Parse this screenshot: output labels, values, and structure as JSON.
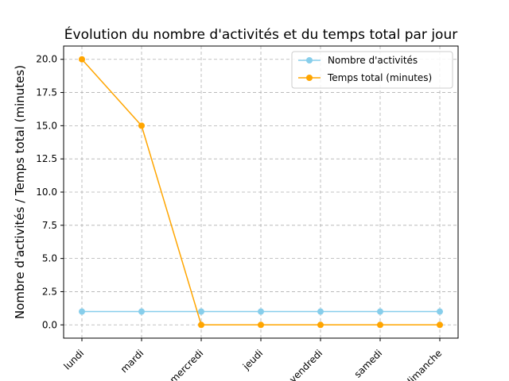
{
  "chart_data": {
    "type": "line",
    "title": "Évolution du nombre d'activités et du temps total par jour",
    "xlabel": "",
    "ylabel": "Nombre d'activités / Temps total (minutes)",
    "categories": [
      "lundi",
      "mardi",
      "mercredi",
      "jeudi",
      "vendredi",
      "samedi",
      "dimanche"
    ],
    "series": [
      {
        "name": "Nombre d'activités",
        "values": [
          1,
          1,
          1,
          1,
          1,
          1,
          1
        ],
        "color": "#87ceeb"
      },
      {
        "name": "Temps total (minutes)",
        "values": [
          20,
          15,
          0,
          0,
          0,
          0,
          0
        ],
        "color": "#ffa500"
      }
    ],
    "ylim": [
      -1,
      21
    ],
    "yticks": [
      "0.0",
      "2.5",
      "5.0",
      "7.5",
      "10.0",
      "12.5",
      "15.0",
      "17.5",
      "20.0"
    ],
    "grid": true,
    "legend_position": "top-right"
  }
}
